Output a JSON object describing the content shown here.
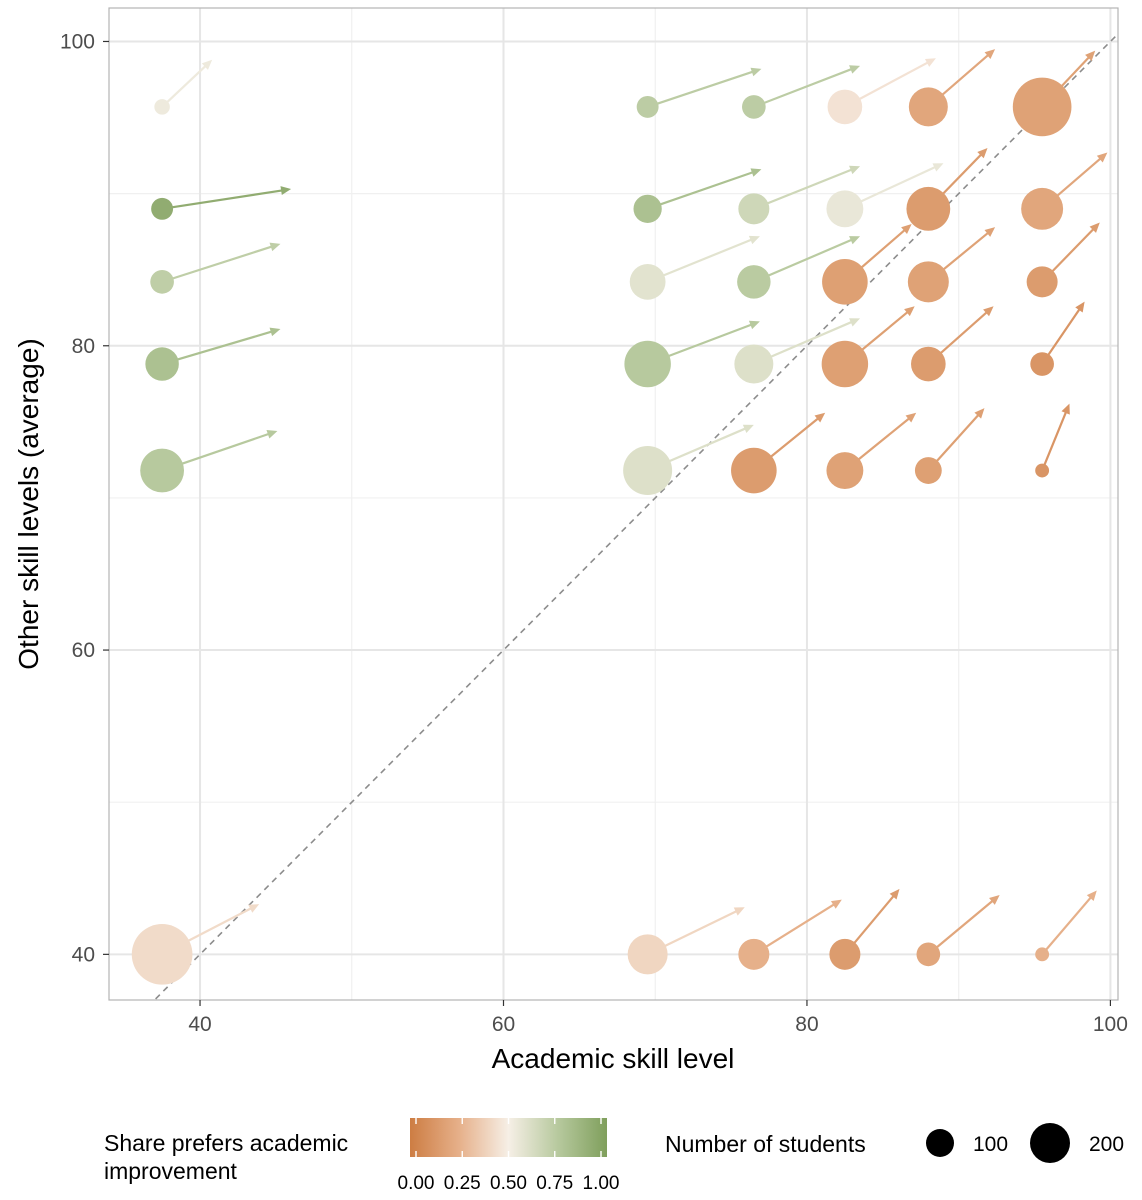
{
  "chart_data": {
    "type": "scatter",
    "xlabel": "Academic skill level",
    "ylabel": "Other skill levels (average)",
    "xlim": [
      34,
      100.5
    ],
    "ylim": [
      37,
      102.2
    ],
    "x_ticks": [
      40,
      60,
      80,
      100
    ],
    "y_ticks": [
      40,
      60,
      80,
      100
    ],
    "x_tick_labels": [
      "40",
      "60",
      "80",
      "100"
    ],
    "y_tick_labels": [
      "40",
      "60",
      "80",
      "100"
    ],
    "grid": true,
    "reference_line": {
      "type": "diagonal",
      "from": [
        34,
        34
      ],
      "to": [
        100.5,
        100.5
      ],
      "style": "dashed"
    },
    "legend_color": {
      "title_lines": [
        "Share prefers academic",
        "improvement"
      ],
      "tick_labels": [
        "0.00",
        "0.25",
        "0.50",
        "0.75",
        "1.00"
      ],
      "colors": [
        "#cd7d43",
        "#e6b08a",
        "#f6efe6",
        "#b7c99e",
        "#7f9f5c"
      ]
    },
    "legend_size": {
      "title": "Number of students",
      "entries": [
        {
          "label": "100",
          "value": 100
        },
        {
          "label": "200",
          "value": 200
        }
      ]
    },
    "points": [
      {
        "x": 37.5,
        "y": 95.7,
        "n": 15,
        "share": 0.53,
        "dx": 3.3,
        "dy": 3.1
      },
      {
        "x": 69.5,
        "y": 95.7,
        "n": 30,
        "share": 0.73,
        "dx": 7.5,
        "dy": 2.5
      },
      {
        "x": 76.5,
        "y": 95.7,
        "n": 35,
        "share": 0.73,
        "dx": 7.0,
        "dy": 2.7
      },
      {
        "x": 82.5,
        "y": 95.7,
        "n": 75,
        "share": 0.45,
        "dx": 6.0,
        "dy": 3.2
      },
      {
        "x": 88.0,
        "y": 95.7,
        "n": 95,
        "share": 0.2,
        "dx": 4.4,
        "dy": 3.8
      },
      {
        "x": 95.5,
        "y": 95.7,
        "n": 215,
        "share": 0.18,
        "dx": 3.5,
        "dy": 3.7
      },
      {
        "x": 37.5,
        "y": 89.0,
        "n": 30,
        "share": 0.92,
        "dx": 8.5,
        "dy": 1.3
      },
      {
        "x": 69.5,
        "y": 89.0,
        "n": 50,
        "share": 0.8,
        "dx": 7.5,
        "dy": 2.6
      },
      {
        "x": 76.5,
        "y": 89.0,
        "n": 60,
        "share": 0.66,
        "dx": 7.0,
        "dy": 2.8
      },
      {
        "x": 82.5,
        "y": 89.0,
        "n": 85,
        "share": 0.55,
        "dx": 6.5,
        "dy": 3.0
      },
      {
        "x": 88.0,
        "y": 89.0,
        "n": 120,
        "share": 0.15,
        "dx": 3.9,
        "dy": 4.0
      },
      {
        "x": 95.5,
        "y": 89.0,
        "n": 110,
        "share": 0.2,
        "dx": 4.3,
        "dy": 3.7
      },
      {
        "x": 37.5,
        "y": 84.2,
        "n": 35,
        "share": 0.72,
        "dx": 7.8,
        "dy": 2.5
      },
      {
        "x": 69.5,
        "y": 84.2,
        "n": 80,
        "share": 0.58,
        "dx": 7.4,
        "dy": 3.0
      },
      {
        "x": 76.5,
        "y": 84.2,
        "n": 70,
        "share": 0.74,
        "dx": 7.0,
        "dy": 3.0
      },
      {
        "x": 82.5,
        "y": 84.2,
        "n": 130,
        "share": 0.17,
        "dx": 4.4,
        "dy": 3.8
      },
      {
        "x": 88.0,
        "y": 84.2,
        "n": 105,
        "share": 0.18,
        "dx": 4.4,
        "dy": 3.6
      },
      {
        "x": 95.5,
        "y": 84.2,
        "n": 60,
        "share": 0.15,
        "dx": 3.8,
        "dy": 3.9
      },
      {
        "x": 37.5,
        "y": 78.8,
        "n": 70,
        "share": 0.8,
        "dx": 7.8,
        "dy": 2.3
      },
      {
        "x": 69.5,
        "y": 78.8,
        "n": 135,
        "share": 0.75,
        "dx": 7.4,
        "dy": 2.8
      },
      {
        "x": 76.5,
        "y": 78.8,
        "n": 95,
        "share": 0.6,
        "dx": 7.0,
        "dy": 3.0
      },
      {
        "x": 82.5,
        "y": 78.8,
        "n": 135,
        "share": 0.17,
        "dx": 4.6,
        "dy": 3.8
      },
      {
        "x": 88.0,
        "y": 78.8,
        "n": 75,
        "share": 0.15,
        "dx": 4.3,
        "dy": 3.8
      },
      {
        "x": 95.5,
        "y": 78.8,
        "n": 35,
        "share": 0.12,
        "dx": 2.8,
        "dy": 4.1
      },
      {
        "x": 37.5,
        "y": 71.8,
        "n": 120,
        "share": 0.75,
        "dx": 7.6,
        "dy": 2.6
      },
      {
        "x": 69.5,
        "y": 71.8,
        "n": 150,
        "share": 0.6,
        "dx": 7.0,
        "dy": 3.0
      },
      {
        "x": 76.5,
        "y": 71.8,
        "n": 130,
        "share": 0.15,
        "dx": 4.7,
        "dy": 3.8
      },
      {
        "x": 82.5,
        "y": 71.8,
        "n": 85,
        "share": 0.18,
        "dx": 4.7,
        "dy": 3.8
      },
      {
        "x": 88.0,
        "y": 71.8,
        "n": 45,
        "share": 0.17,
        "dx": 3.7,
        "dy": 4.1
      },
      {
        "x": 95.5,
        "y": 71.8,
        "n": 12,
        "share": 0.12,
        "dx": 1.8,
        "dy": 4.4
      },
      {
        "x": 37.5,
        "y": 40.0,
        "n": 230,
        "share": 0.42,
        "dx": 6.4,
        "dy": 3.3
      },
      {
        "x": 69.5,
        "y": 40.0,
        "n": 100,
        "share": 0.4,
        "dx": 6.4,
        "dy": 3.1
      },
      {
        "x": 76.5,
        "y": 40.0,
        "n": 60,
        "share": 0.25,
        "dx": 5.8,
        "dy": 3.6
      },
      {
        "x": 82.5,
        "y": 40.0,
        "n": 60,
        "share": 0.15,
        "dx": 3.6,
        "dy": 4.3
      },
      {
        "x": 88.0,
        "y": 40.0,
        "n": 35,
        "share": 0.2,
        "dx": 4.7,
        "dy": 3.9
      },
      {
        "x": 95.5,
        "y": 40.0,
        "n": 12,
        "share": 0.25,
        "dx": 3.6,
        "dy": 4.2
      }
    ]
  }
}
